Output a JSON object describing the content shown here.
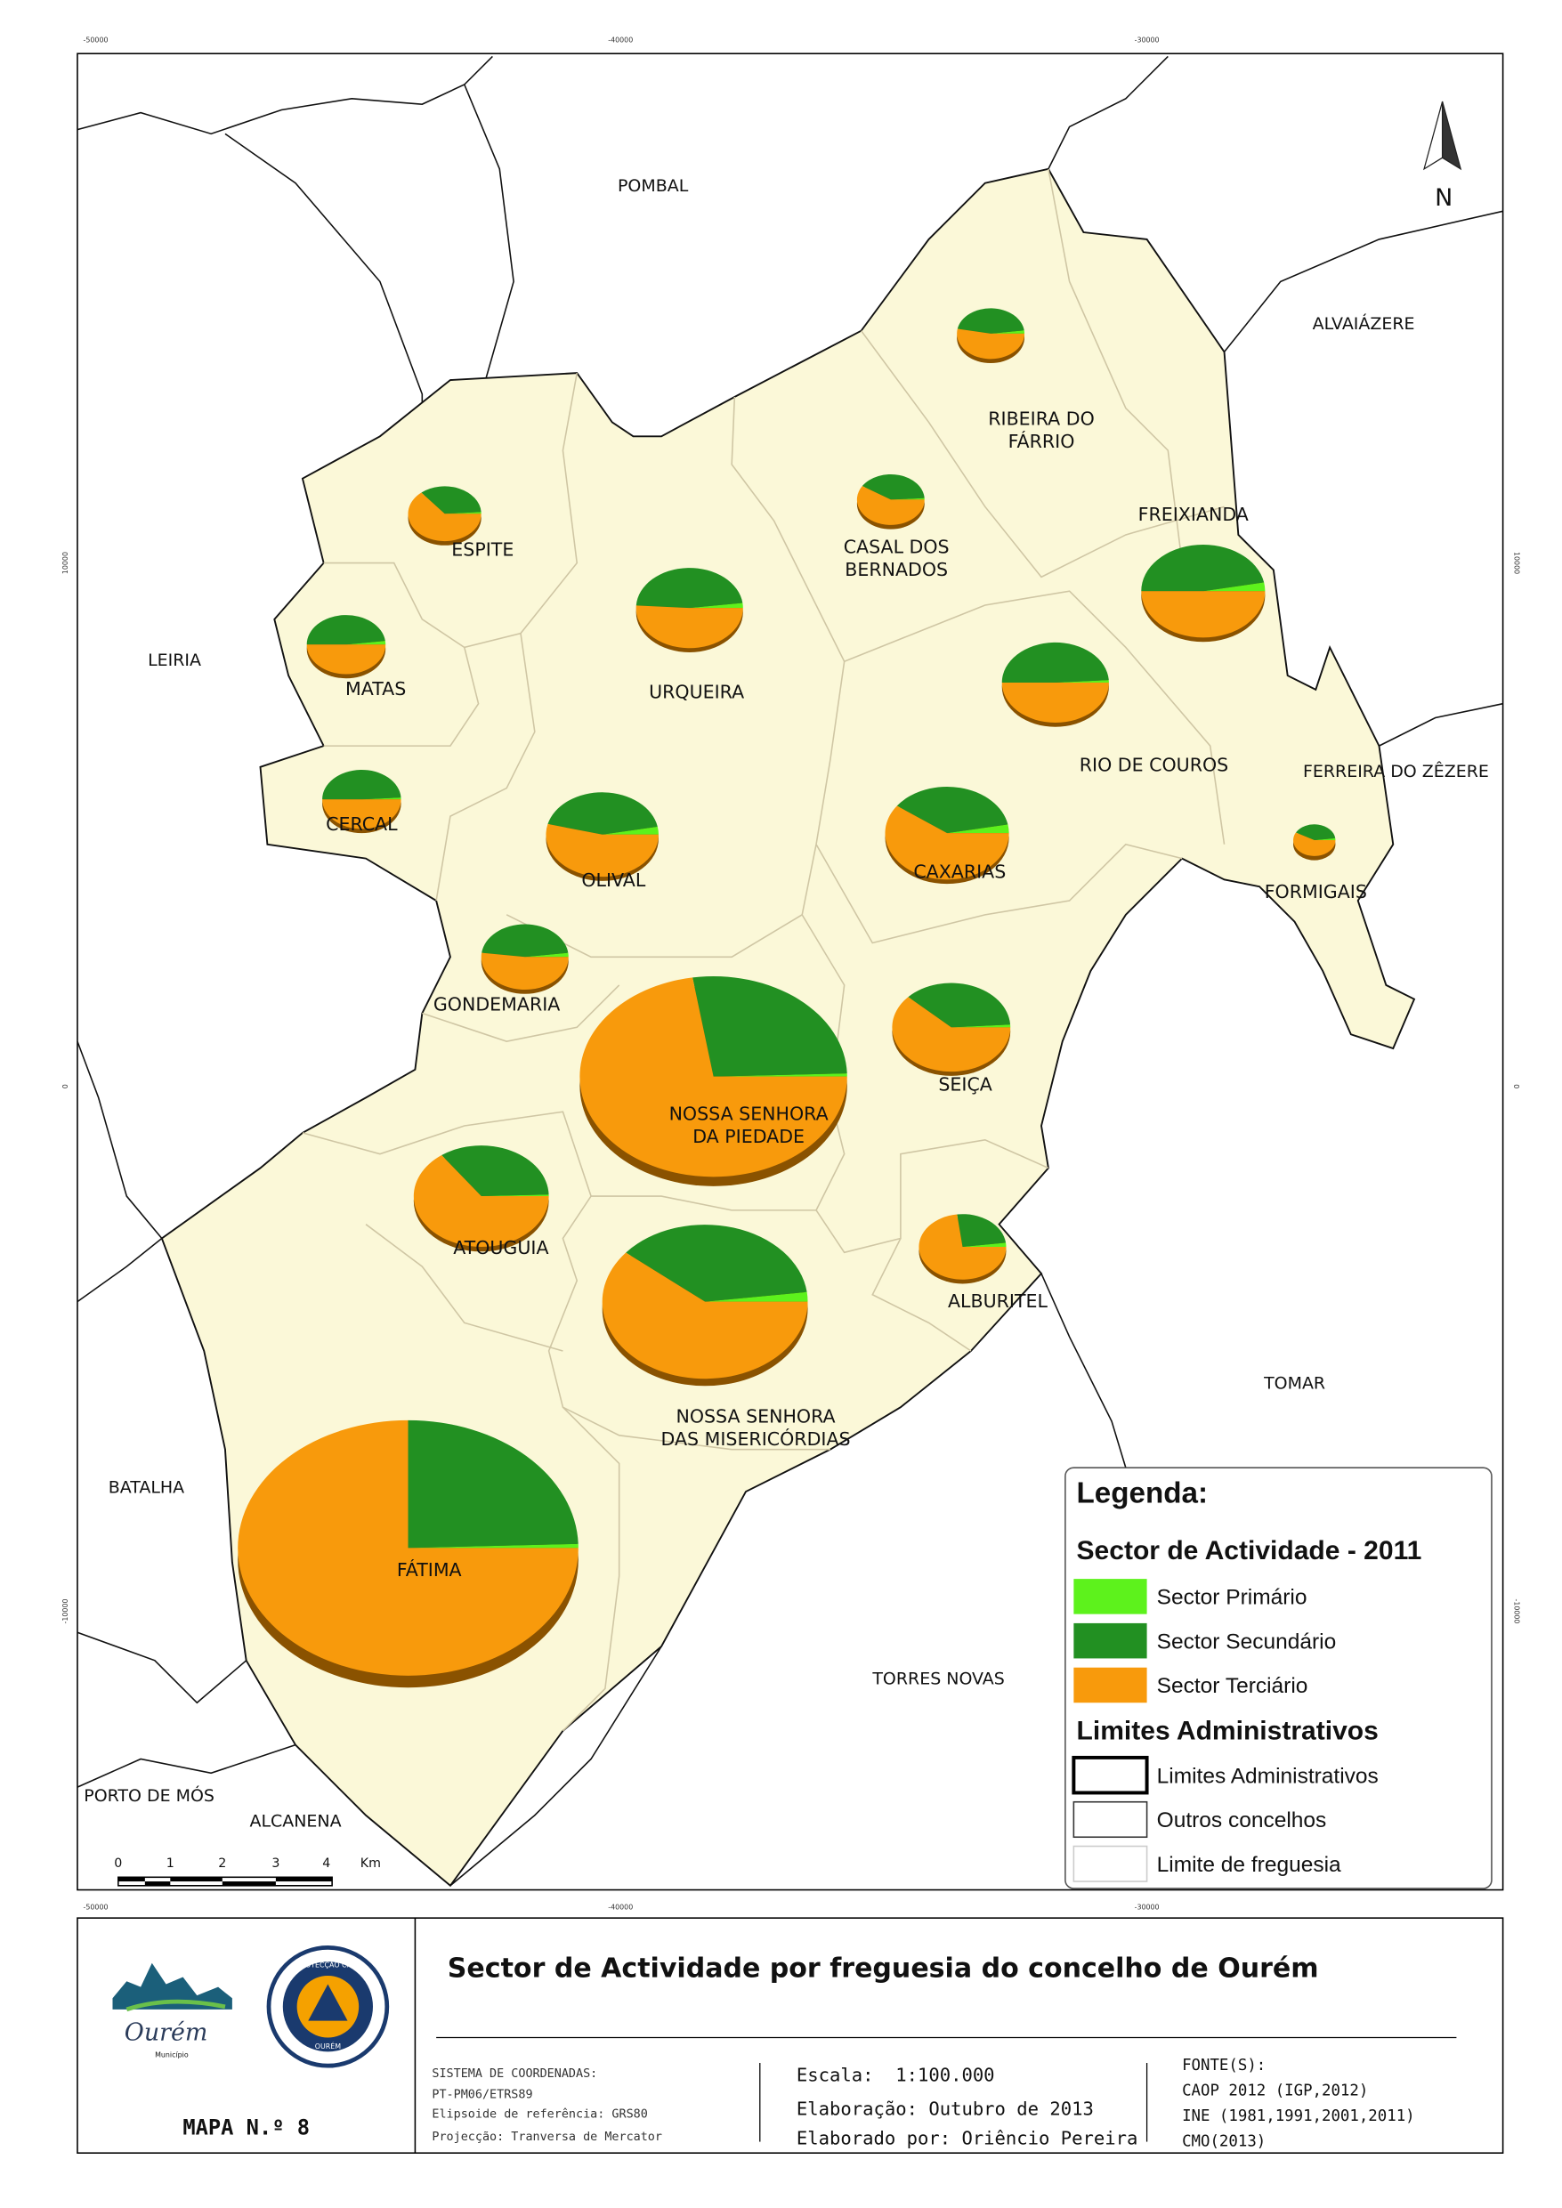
{
  "header": {
    "title": "Sector de Actividade por freguesia do concelho de Ourém",
    "map_number": "MAPA N.º 8"
  },
  "coordinates": {
    "top": [
      "-50000",
      "-40000",
      "-30000"
    ],
    "side": [
      "10000",
      "0",
      "-10000"
    ]
  },
  "neighbours": [
    "POMBAL",
    "ALVAIÁZERE",
    "LEIRIA",
    "FERREIRA DO ZÊZERE",
    "TOMAR",
    "BATALHA",
    "TORRES NOVAS",
    "PORTO DE MÓS",
    "ALCANENA"
  ],
  "freguesias": [
    {
      "label": [
        "RIBEIRA DO",
        "FÁRRIO"
      ],
      "sectors": [
        2,
        45,
        53
      ]
    },
    {
      "label": [
        "ESPITE"
      ],
      "sectors": [
        1,
        35,
        64
      ]
    },
    {
      "label": [
        "CASAL DOS",
        "BERNADOS"
      ],
      "sectors": [
        1,
        40,
        59
      ]
    },
    {
      "label": [
        "FREIXIANDA"
      ],
      "sectors": [
        3,
        47,
        50
      ]
    },
    {
      "label": [
        "MATAS"
      ],
      "sectors": [
        2,
        48,
        50
      ]
    },
    {
      "label": [
        "URQUEIRA"
      ],
      "sectors": [
        2,
        47,
        51
      ]
    },
    {
      "label": [
        "RIO DE COUROS"
      ],
      "sectors": [
        1,
        49,
        50
      ]
    },
    {
      "label": [
        "CERCAL"
      ],
      "sectors": [
        1,
        49,
        50
      ]
    },
    {
      "label": [
        "OLIVAL"
      ],
      "sectors": [
        3,
        43,
        54
      ]
    },
    {
      "label": [
        "CAXARIAS"
      ],
      "sectors": [
        3,
        37,
        60
      ]
    },
    {
      "label": [
        "FORMIGAIS"
      ],
      "sectors": [
        2,
        40,
        58
      ]
    },
    {
      "label": [
        "GONDEMARIA"
      ],
      "sectors": [
        2,
        46,
        52
      ]
    },
    {
      "label": [
        "NOSSA SENHORA",
        "DA PIEDADE"
      ],
      "sectors": [
        0.5,
        27,
        72.5
      ]
    },
    {
      "label": [
        "SEIÇA"
      ],
      "sectors": [
        1,
        37,
        62
      ]
    },
    {
      "label": [
        "ATOUGUIA"
      ],
      "sectors": [
        0.5,
        34.5,
        65
      ]
    },
    {
      "label": [
        "NOSSA SENHORA",
        "DAS MISERICÓRDIAS"
      ],
      "sectors": [
        2,
        37,
        61
      ]
    },
    {
      "label": [
        "ALBURITEL"
      ],
      "sectors": [
        2,
        25,
        73
      ]
    },
    {
      "label": [
        "FÁTIMA"
      ],
      "sectors": [
        0.5,
        24.5,
        75
      ]
    }
  ],
  "legend": {
    "title": "Legenda:",
    "subtitle": "Sector de Actividade - 2011",
    "sectors": [
      {
        "name": "Sector Primário",
        "color": "#5df21c"
      },
      {
        "name": "Sector Secundário",
        "color": "#229022"
      },
      {
        "name": "Sector Terciário",
        "color": "#f89a0c"
      }
    ],
    "limits_title": "Limites Administrativos",
    "limits": [
      "Limites Administrativos",
      "Outros concelhos",
      "Limite de freguesia"
    ]
  },
  "scale_bar": {
    "ticks": [
      "0",
      "1",
      "2",
      "3",
      "4"
    ],
    "unit": "Km"
  },
  "north": "N",
  "logos": {
    "municipality": "Ourém",
    "municipality_sub": "Município",
    "civil_protection": "PROTECÇÃO CIVIL",
    "civil_protection_sub": "OURÉM"
  },
  "metadata": {
    "system": [
      "SISTEMA DE COORDENADAS:",
      "PT-PM06/ETRS89",
      "Elipsoide de referência: GRS80",
      "Projecção: Tranversa de Mercator"
    ],
    "scale": "Escala:  1:100.000",
    "elaboration": "Elaboração: Outubro de 2013",
    "author": "Elaborado por: Oriêncio Pereira",
    "sources": [
      "FONTE(S):",
      "CAOP 2012 (IGP,2012)",
      "INE (1981,1991,2001,2011)",
      "CMO(2013)"
    ]
  }
}
